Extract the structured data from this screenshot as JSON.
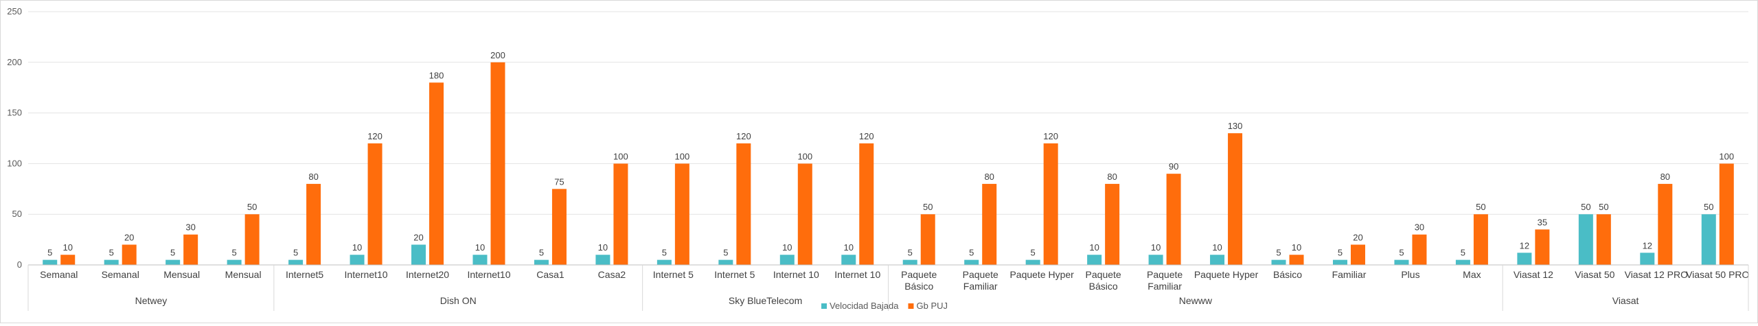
{
  "chart_data": {
    "type": "bar",
    "ylim": [
      0,
      250
    ],
    "yticks": [
      0,
      50,
      100,
      150,
      200,
      250
    ],
    "grid": true,
    "legend_position": "bottom",
    "colors": {
      "Velocidad Bajada": "#4ABDC6",
      "Gb PUJ": "#FF6D0C"
    },
    "groups": [
      {
        "name": "Netwey",
        "categories": [
          "Semanal",
          "Semanal",
          "Mensual",
          "Mensual"
        ]
      },
      {
        "name": "Dish ON",
        "categories": [
          "Internet5",
          "Internet10",
          "Internet20",
          "Internet10",
          "Casa1",
          "Casa2"
        ]
      },
      {
        "name": "Sky BlueTelecom",
        "categories": [
          "Internet 5",
          "Internet 5",
          "Internet 10",
          "Internet 10"
        ]
      },
      {
        "name": "Newww",
        "categories": [
          "Paquete Básico",
          "Paquete Familiar",
          "Paquete Hyper",
          "Paquete Básico",
          "Paquete Familiar",
          "Paquete Hyper",
          "Básico",
          "Familiar",
          "Plus",
          "Max"
        ]
      },
      {
        "name": "Viasat",
        "categories": [
          "Viasat 12",
          "Viasat 50",
          "Viasat 12 PRO",
          "Viasat 50 PRO"
        ]
      }
    ],
    "series": [
      {
        "name": "Velocidad Bajada",
        "values": [
          5,
          5,
          5,
          5,
          5,
          10,
          20,
          10,
          5,
          10,
          5,
          5,
          10,
          10,
          5,
          5,
          5,
          10,
          10,
          10,
          5,
          5,
          5,
          5,
          12,
          50,
          12,
          50
        ]
      },
      {
        "name": "Gb PUJ",
        "values": [
          10,
          20,
          30,
          50,
          80,
          120,
          180,
          200,
          75,
          100,
          100,
          120,
          100,
          120,
          50,
          80,
          120,
          80,
          90,
          130,
          10,
          20,
          30,
          50,
          35,
          50,
          80,
          100
        ]
      }
    ]
  }
}
